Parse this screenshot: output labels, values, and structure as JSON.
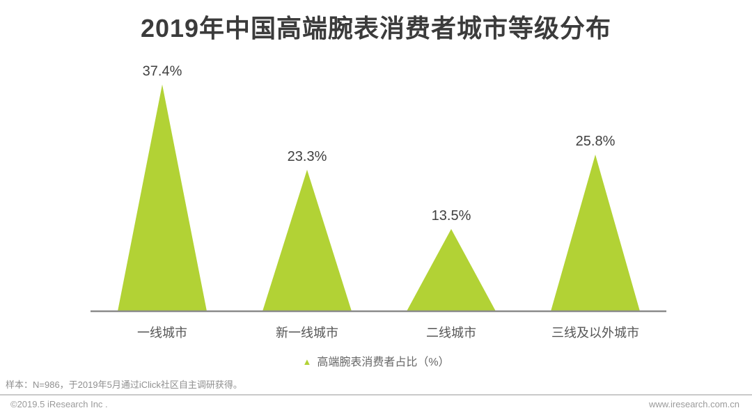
{
  "title": "2019年中国高端腕表消费者城市等级分布",
  "chart_data": {
    "type": "bar",
    "shape": "triangle",
    "categories": [
      "一线城市",
      "新一线城市",
      "二线城市",
      "三线及以外城市"
    ],
    "values": [
      37.4,
      23.3,
      13.5,
      25.8
    ],
    "value_format": "percent",
    "legend": "高端腕表消费者占比（%）",
    "legend_position": "bottom-center",
    "title": "2019年中国高端腕表消费者城市等级分布",
    "xlabel": "",
    "ylabel": "",
    "ylim": [
      0,
      40
    ],
    "grid": false,
    "x_axis_line": true,
    "color": "#B2D235",
    "axis_color": "#8A8A8A",
    "label_color": "#3F3F3F",
    "category_color": "#555555"
  },
  "footer": {
    "note": "样本：N=986，于2019年5月通过iClick社区自主调研获得。",
    "copyright": "©2019.5 iResearch Inc .",
    "website": "www.iresearch.com.cn"
  }
}
